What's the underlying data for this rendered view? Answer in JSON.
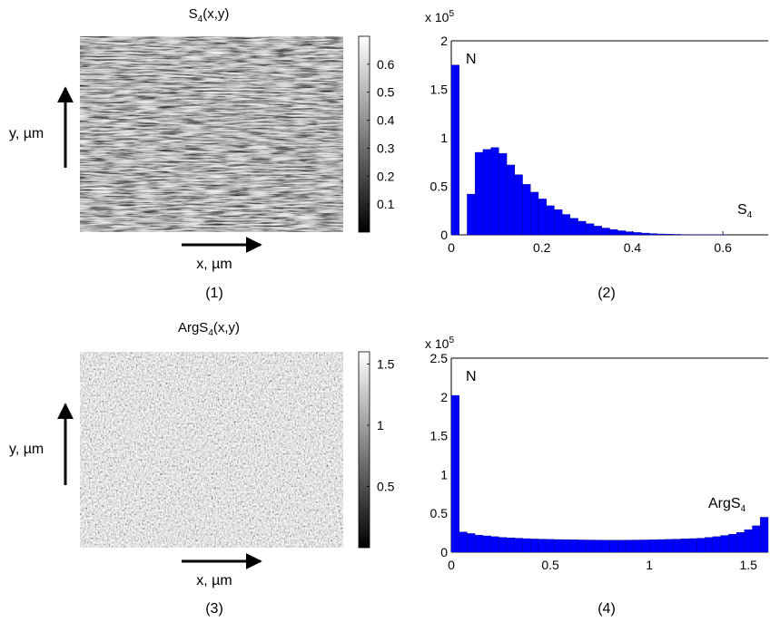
{
  "panels": {
    "p1": {
      "title_main": "S",
      "title_sub": "4",
      "title_tail": "(x,y)",
      "caption": "(1)",
      "x_axis_label": "x, µm",
      "y_axis_label": "y, µm",
      "colorbar_ticks": [
        "0.1",
        "0.2",
        "0.3",
        "0.4",
        "0.5",
        "0.6"
      ]
    },
    "p3": {
      "title_main": "ArgS",
      "title_sub": "4",
      "title_tail": "(x,y)",
      "caption": "(3)",
      "x_axis_label": "x, µm",
      "y_axis_label": "y, µm",
      "colorbar_ticks": [
        "0.5",
        "1",
        "1.5"
      ]
    },
    "p2": {
      "caption": "(2)"
    },
    "p4": {
      "caption": "(4)"
    }
  },
  "chart_data": [
    {
      "type": "heatmap",
      "title": "S4(x,y)",
      "xlabel": "x, µm",
      "ylabel": "y, µm",
      "colormap": "gray",
      "clim": [
        0,
        0.7
      ],
      "colorbar_ticks": [
        0.1,
        0.2,
        0.3,
        0.4,
        0.5,
        0.6
      ]
    },
    {
      "type": "bar",
      "title": "",
      "xlabel": "S4",
      "ylabel": "N",
      "y_multiplier": "x 10^5",
      "xlim": [
        0,
        0.7
      ],
      "ylim": [
        0,
        2
      ],
      "x_ticks": [
        "0",
        "0.2",
        "0.4",
        "0.6"
      ],
      "y_ticks": [
        "0",
        "0.5",
        "1",
        "1.5",
        "2"
      ],
      "bar_color": "#0000ff",
      "bin_width": 0.0175,
      "x": [
        0.00875,
        0.02625,
        0.04375,
        0.06125,
        0.07875,
        0.09625,
        0.11375,
        0.13125,
        0.14875,
        0.16625,
        0.18375,
        0.20125,
        0.21875,
        0.23625,
        0.25375,
        0.27125,
        0.28875,
        0.30625,
        0.32375,
        0.34125,
        0.35875,
        0.37625,
        0.39375,
        0.41125,
        0.42875,
        0.44625,
        0.46375,
        0.48125,
        0.49875,
        0.51625,
        0.53375,
        0.55125,
        0.56875,
        0.58625,
        0.60375,
        0.62125,
        0.63875,
        0.65625,
        0.67375,
        0.69125
      ],
      "values": [
        1.75,
        0.0,
        0.42,
        0.85,
        0.88,
        0.9,
        0.84,
        0.72,
        0.62,
        0.52,
        0.44,
        0.37,
        0.3,
        0.26,
        0.21,
        0.17,
        0.14,
        0.115,
        0.09,
        0.07,
        0.055,
        0.042,
        0.032,
        0.024,
        0.018,
        0.013,
        0.009,
        0.007,
        0.005,
        0.003,
        0.002,
        0.002,
        0.001,
        0.001,
        0.001,
        0.0,
        0.0,
        0.0,
        0.0,
        0.0
      ]
    },
    {
      "type": "heatmap",
      "title": "ArgS4(x,y)",
      "xlabel": "x, µm",
      "ylabel": "y, µm",
      "colormap": "gray",
      "clim": [
        0,
        1.6
      ],
      "colorbar_ticks": [
        0.5,
        1,
        1.5
      ]
    },
    {
      "type": "bar",
      "title": "",
      "xlabel": "ArgS4",
      "ylabel": "N",
      "y_multiplier": "x 10^5",
      "xlim": [
        0,
        1.6
      ],
      "ylim": [
        0,
        2.5
      ],
      "x_ticks": [
        "0",
        "0.5",
        "1",
        "1.5"
      ],
      "y_ticks": [
        "0",
        "0.5",
        "1",
        "1.5",
        "2",
        "2.5"
      ],
      "bar_color": "#0000ff",
      "bin_width": 0.04,
      "x": [
        0.02,
        0.06,
        0.1,
        0.14,
        0.18,
        0.22,
        0.26,
        0.3,
        0.34,
        0.38,
        0.42,
        0.46,
        0.5,
        0.54,
        0.58,
        0.62,
        0.66,
        0.7,
        0.74,
        0.78,
        0.82,
        0.86,
        0.9,
        0.94,
        0.98,
        1.02,
        1.06,
        1.1,
        1.14,
        1.18,
        1.22,
        1.26,
        1.3,
        1.34,
        1.38,
        1.42,
        1.46,
        1.5,
        1.54,
        1.58
      ],
      "values": [
        2.02,
        0.26,
        0.24,
        0.22,
        0.21,
        0.2,
        0.19,
        0.185,
        0.18,
        0.175,
        0.17,
        0.168,
        0.165,
        0.163,
        0.162,
        0.16,
        0.158,
        0.157,
        0.156,
        0.155,
        0.155,
        0.155,
        0.156,
        0.157,
        0.158,
        0.16,
        0.163,
        0.165,
        0.168,
        0.172,
        0.175,
        0.18,
        0.19,
        0.2,
        0.215,
        0.23,
        0.255,
        0.29,
        0.34,
        0.45
      ]
    }
  ],
  "texts": {
    "h2_multiplier_base": "x 10",
    "h2_multiplier_exp": "5",
    "h2_ylabel": "N",
    "h2_xlabel_main": "S",
    "h2_xlabel_sub": "4",
    "h4_multiplier_base": "x 10",
    "h4_multiplier_exp": "5",
    "h4_ylabel": "N",
    "h4_xlabel_main": "ArgS",
    "h4_xlabel_sub": "4"
  }
}
